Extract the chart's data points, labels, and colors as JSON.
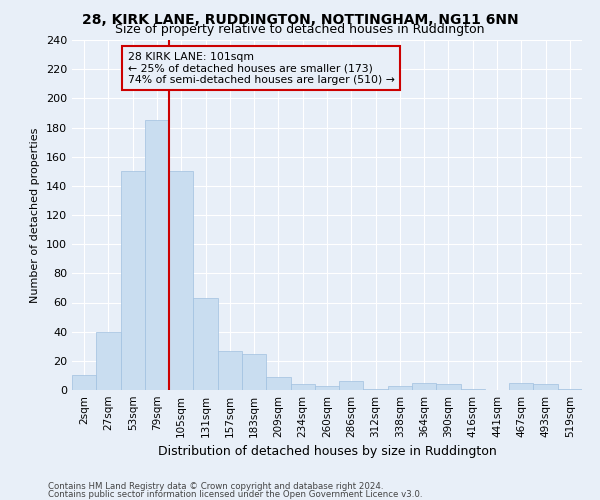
{
  "title": "28, KIRK LANE, RUDDINGTON, NOTTINGHAM, NG11 6NN",
  "subtitle": "Size of property relative to detached houses in Ruddington",
  "xlabel": "Distribution of detached houses by size in Ruddington",
  "ylabel": "Number of detached properties",
  "footnote1": "Contains HM Land Registry data © Crown copyright and database right 2024.",
  "footnote2": "Contains public sector information licensed under the Open Government Licence v3.0.",
  "categories": [
    "2sqm",
    "27sqm",
    "53sqm",
    "79sqm",
    "105sqm",
    "131sqm",
    "157sqm",
    "183sqm",
    "209sqm",
    "234sqm",
    "260sqm",
    "286sqm",
    "312sqm",
    "338sqm",
    "364sqm",
    "390sqm",
    "416sqm",
    "441sqm",
    "467sqm",
    "493sqm",
    "519sqm"
  ],
  "values": [
    10,
    40,
    150,
    185,
    150,
    63,
    27,
    25,
    9,
    4,
    3,
    6,
    1,
    3,
    5,
    4,
    1,
    0,
    5,
    4,
    1
  ],
  "bar_color": "#c9ddf0",
  "bar_edge_color": "#a0c0e0",
  "annotation_line1": "28 KIRK LANE: 101sqm",
  "annotation_line2": "← 25% of detached houses are smaller (173)",
  "annotation_line3": "74% of semi-detached houses are larger (510) →",
  "vline_color": "#cc0000",
  "annotation_box_color": "#cc0000",
  "ylim": [
    0,
    240
  ],
  "yticks": [
    0,
    20,
    40,
    60,
    80,
    100,
    120,
    140,
    160,
    180,
    200,
    220,
    240
  ],
  "bg_color": "#e8eff8",
  "grid_color": "#ffffff",
  "title_fontsize": 10,
  "subtitle_fontsize": 9,
  "tick_fontsize": 8,
  "ylabel_fontsize": 8,
  "xlabel_fontsize": 9
}
